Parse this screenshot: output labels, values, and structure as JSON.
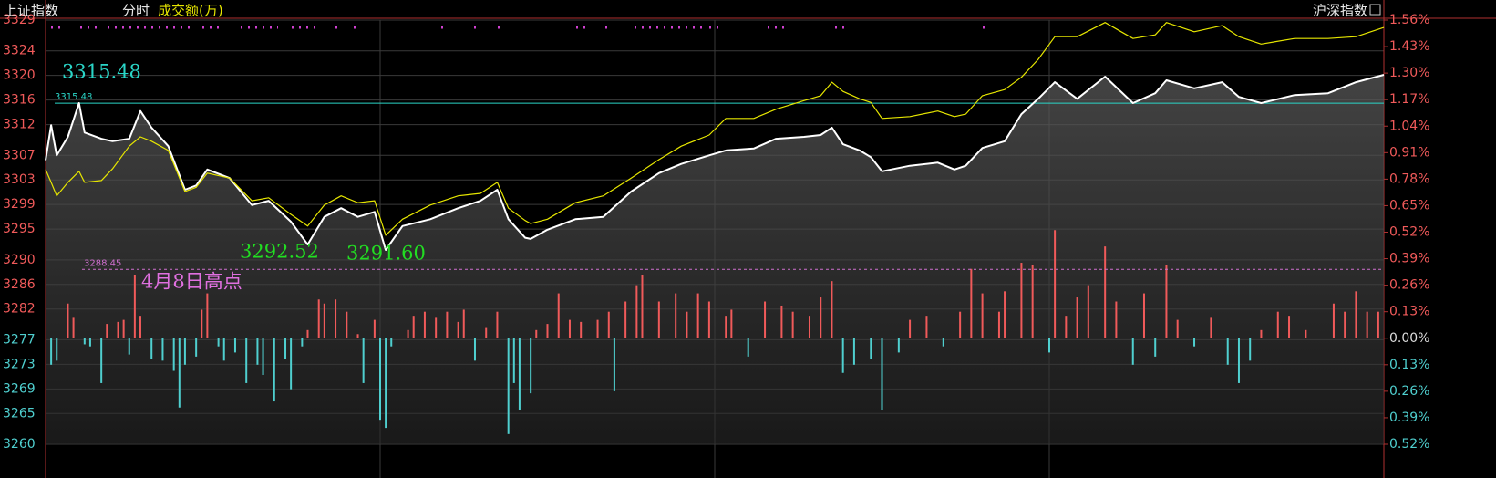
{
  "chart_data": {
    "type": "line",
    "title": "上证指数",
    "period_label": "分时",
    "volume_label": "成交额(万)",
    "index_selector": "沪深指数",
    "xlim": [
      0,
      240
    ],
    "xticks": [
      60,
      120,
      180
    ],
    "ylim": [
      3260,
      3329
    ],
    "yticks": [
      3329,
      3324,
      3320,
      3316,
      3312,
      3307,
      3303,
      3299,
      3295,
      3290,
      3286,
      3282,
      3277,
      3273,
      3269,
      3265,
      3260
    ],
    "y2lim": [
      -0.52,
      1.56
    ],
    "y2ticks": [
      {
        "value": 1.56,
        "label": "1.56%"
      },
      {
        "value": 1.43,
        "label": "1.43%"
      },
      {
        "value": 1.3,
        "label": "1.30%"
      },
      {
        "value": 1.17,
        "label": "1.17%"
      },
      {
        "value": 1.04,
        "label": "1.04%"
      },
      {
        "value": 0.91,
        "label": "0.91%"
      },
      {
        "value": 0.78,
        "label": "0.78%"
      },
      {
        "value": 0.65,
        "label": "0.65%"
      },
      {
        "value": 0.52,
        "label": "0.52%"
      },
      {
        "value": 0.39,
        "label": "0.39%"
      },
      {
        "value": 0.26,
        "label": "0.26%"
      },
      {
        "value": 0.13,
        "label": "0.13%"
      },
      {
        "value": 0,
        "label": "0.00%"
      },
      {
        "value": -0.13,
        "label": "0.13%"
      },
      {
        "value": -0.26,
        "label": "0.26%"
      },
      {
        "value": -0.39,
        "label": "0.39%"
      },
      {
        "value": -0.52,
        "label": "0.52%"
      }
    ],
    "grid": true,
    "up_color": "#f05a5a",
    "down_color": "#4fcfcf",
    "x": [
      0,
      1,
      2,
      4,
      6,
      7,
      10,
      12,
      15,
      17,
      19,
      22,
      25,
      27,
      29,
      33,
      37,
      40,
      44,
      47,
      50,
      53,
      56,
      59,
      61,
      64,
      69,
      74,
      78,
      81,
      83,
      86,
      87,
      90,
      95,
      100,
      105,
      110,
      114,
      119,
      122,
      127,
      131,
      136,
      139,
      141,
      143,
      146,
      148,
      150,
      155,
      160,
      163,
      165,
      168,
      172,
      175,
      178,
      181,
      185,
      190,
      195,
      199,
      201,
      206,
      211,
      214,
      218,
      224,
      230,
      235,
      240
    ],
    "series": [
      {
        "color": "#ffffff",
        "fill_under": true,
        "values": [
          3306.2,
          3311.9,
          3307.0,
          3310.0,
          3315.5,
          3310.7,
          3309.7,
          3309.3,
          3309.7,
          3314.2,
          3311.5,
          3308.5,
          3301.4,
          3302.1,
          3304.7,
          3303.3,
          3298.9,
          3299.6,
          3296.2,
          3292.5,
          3297.0,
          3298.4,
          3297.0,
          3297.8,
          3291.6,
          3295.5,
          3296.6,
          3298.4,
          3299.6,
          3301.4,
          3296.6,
          3293.6,
          3293.4,
          3294.9,
          3296.6,
          3297.0,
          3301.1,
          3304.1,
          3305.6,
          3307.0,
          3307.8,
          3308.1,
          3309.7,
          3310.0,
          3310.3,
          3311.5,
          3308.8,
          3307.8,
          3306.7,
          3304.4,
          3305.3,
          3305.8,
          3304.7,
          3305.3,
          3308.2,
          3309.3,
          3313.7,
          3316.2,
          3318.9,
          3316.2,
          3319.8,
          3315.5,
          3317.1,
          3319.2,
          3317.9,
          3318.9,
          3316.5,
          3315.5,
          3316.8,
          3317.1,
          3318.9,
          3320.1
        ]
      },
      {
        "color": "#e6e600",
        "fill_under": false,
        "values": [
          3304.7,
          3302.6,
          3300.4,
          3302.6,
          3304.4,
          3302.6,
          3302.9,
          3304.8,
          3308.5,
          3310.0,
          3309.3,
          3307.8,
          3301.1,
          3301.8,
          3304.1,
          3303.3,
          3299.6,
          3300.1,
          3297.4,
          3295.5,
          3298.9,
          3300.4,
          3299.3,
          3299.6,
          3294.0,
          3296.6,
          3298.9,
          3300.4,
          3300.8,
          3302.6,
          3298.4,
          3296.4,
          3295.9,
          3296.6,
          3299.3,
          3300.4,
          3303.3,
          3306.3,
          3308.5,
          3310.3,
          3313.0,
          3313.0,
          3314.5,
          3315.9,
          3316.7,
          3318.9,
          3317.4,
          3316.2,
          3315.6,
          3313.0,
          3313.3,
          3314.2,
          3313.3,
          3313.7,
          3316.7,
          3317.7,
          3319.7,
          3322.6,
          3326.3,
          3326.3,
          3328.6,
          3326.0,
          3326.6,
          3328.6,
          3327.1,
          3328.1,
          3326.3,
          3325.1,
          3326.0,
          3326.0,
          3326.3,
          3327.8
        ]
      }
    ],
    "bars": {
      "axis": "y2",
      "x": [
        1,
        2,
        4,
        5,
        7,
        8,
        10,
        11,
        13,
        14,
        15,
        16,
        17,
        19,
        21,
        23,
        24,
        25,
        27,
        28,
        29,
        31,
        32,
        34,
        36,
        38,
        39,
        41,
        43,
        44,
        46,
        47,
        49,
        50,
        52,
        54,
        56,
        57,
        59,
        60,
        61,
        62,
        65,
        66,
        68,
        70,
        72,
        74,
        75,
        77,
        79,
        81,
        83,
        84,
        85,
        87,
        88,
        90,
        92,
        94,
        96,
        99,
        101,
        102,
        104,
        106,
        107,
        110,
        113,
        115,
        117,
        119,
        122,
        123,
        126,
        129,
        132,
        134,
        137,
        139,
        141,
        143,
        145,
        148,
        150,
        153,
        155,
        158,
        161,
        164,
        166,
        168,
        171,
        172,
        175,
        177,
        180,
        181,
        183,
        185,
        187,
        190,
        192,
        195,
        197,
        199,
        201,
        203,
        206,
        209,
        212,
        214,
        216,
        218,
        221,
        223,
        226,
        231,
        233,
        235,
        237,
        239
      ],
      "values": [
        -0.13,
        -0.11,
        0.17,
        0.1,
        -0.03,
        -0.04,
        -0.22,
        0.07,
        0.08,
        0.09,
        -0.08,
        0.31,
        0.11,
        -0.1,
        -0.11,
        -0.16,
        -0.34,
        -0.13,
        -0.09,
        0.14,
        0.22,
        -0.04,
        -0.11,
        -0.07,
        -0.22,
        -0.13,
        -0.18,
        -0.31,
        -0.1,
        -0.25,
        -0.04,
        0.04,
        0.19,
        0.17,
        0.19,
        0.13,
        0.02,
        -0.22,
        0.09,
        -0.4,
        -0.44,
        -0.04,
        0.04,
        0.11,
        0.13,
        0.1,
        0.13,
        0.08,
        0.14,
        -0.11,
        0.05,
        0.13,
        -0.47,
        -0.22,
        -0.35,
        -0.27,
        0.04,
        0.07,
        0.22,
        0.09,
        0.08,
        0.09,
        0.13,
        -0.26,
        0.18,
        0.26,
        0.31,
        0.18,
        0.22,
        0.13,
        0.22,
        0.18,
        0.11,
        0.14,
        -0.09,
        0.18,
        0.16,
        0.13,
        0.11,
        0.2,
        0.28,
        -0.17,
        -0.13,
        -0.1,
        -0.35,
        -0.07,
        0.09,
        0.11,
        -0.04,
        0.13,
        0.34,
        0.22,
        0.13,
        0.23,
        0.37,
        0.36,
        -0.07,
        0.53,
        0.11,
        0.2,
        0.26,
        0.45,
        0.18,
        -0.13,
        0.22,
        -0.09,
        0.36,
        0.09,
        -0.04,
        0.1,
        -0.13,
        -0.22,
        -0.11,
        0.04,
        0.13,
        0.11,
        0.04,
        0.17,
        0.13,
        0.23,
        0.13,
        0.13
      ]
    },
    "reference_lines": [
      {
        "value": 3315.48,
        "label": "3315.48",
        "color": "#2ad6c8",
        "dashed": false
      },
      {
        "value": 3288.45,
        "label": "3288.45",
        "color": "#d070d0",
        "dashed": true
      }
    ],
    "annotations": [
      "3315.48",
      "4月8日高点",
      "3292.52",
      "3291.60"
    ]
  }
}
